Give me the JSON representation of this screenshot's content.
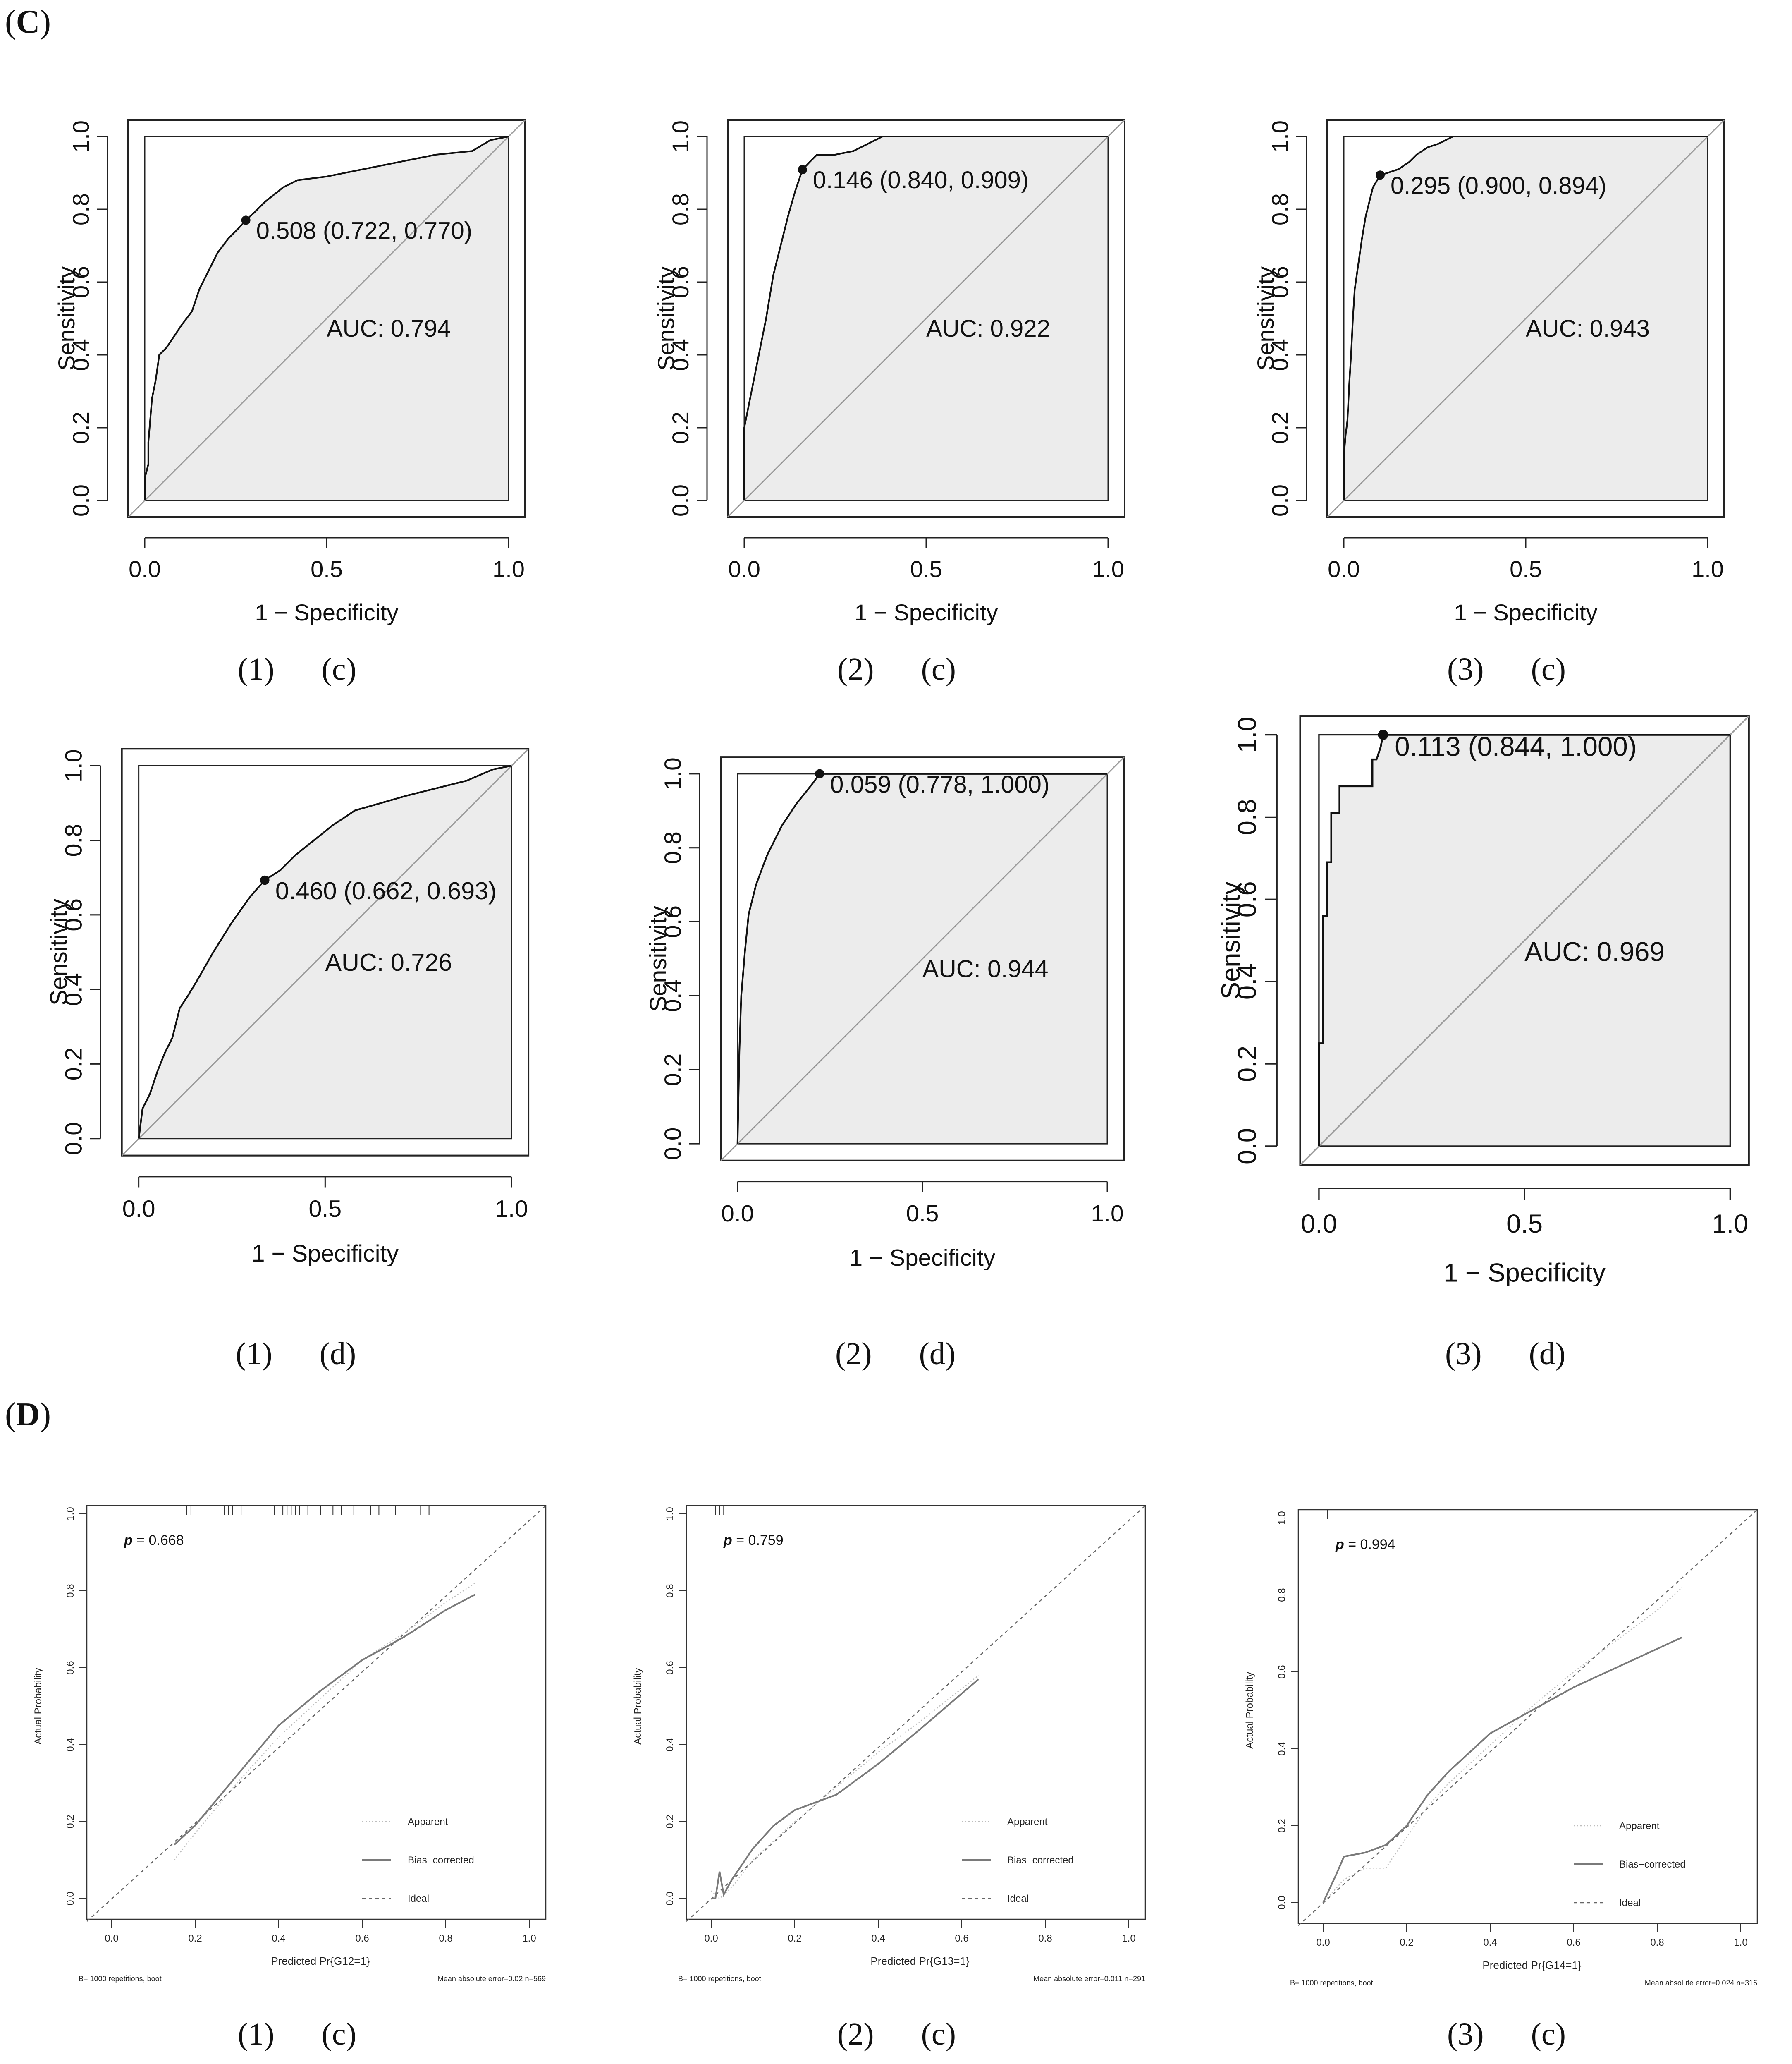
{
  "sections": [
    {
      "label_open": "(",
      "label_letter": "C",
      "label_close": ")"
    },
    {
      "label_open": "(",
      "label_letter": "D",
      "label_close": ")"
    }
  ],
  "captions": [
    {
      "num": "(1)",
      "letter": "(c)"
    },
    {
      "num": "(2)",
      "letter": "(c)"
    },
    {
      "num": "(3)",
      "letter": "(c)"
    },
    {
      "num": "(1)",
      "letter": "(d)"
    },
    {
      "num": "(2)",
      "letter": "(d)"
    },
    {
      "num": "(3)",
      "letter": "(d)"
    },
    {
      "num": "(1)",
      "letter": "(c)"
    },
    {
      "num": "(2)",
      "letter": "(c)"
    },
    {
      "num": "(3)",
      "letter": "(c)"
    }
  ],
  "chart_data": [
    {
      "type": "line",
      "subtype": "roc",
      "xlabel": "1 − Specificity",
      "ylabel": "Sensitivity",
      "xticks": [
        "0.0",
        "0.5",
        "1.0"
      ],
      "yticks": [
        "0.0",
        "0.2",
        "0.4",
        "0.6",
        "0.8",
        "1.0"
      ],
      "xlim": [
        0,
        1
      ],
      "ylim": [
        0,
        1
      ],
      "x": [
        0,
        0,
        0.01,
        0.01,
        0.02,
        0.03,
        0.04,
        0.06,
        0.08,
        0.1,
        0.13,
        0.15,
        0.17,
        0.2,
        0.23,
        0.26,
        0.278,
        0.3,
        0.33,
        0.38,
        0.42,
        0.5,
        0.6,
        0.7,
        0.8,
        0.9,
        0.95,
        1
      ],
      "y": [
        0,
        0.06,
        0.1,
        0.16,
        0.28,
        0.33,
        0.4,
        0.42,
        0.45,
        0.48,
        0.52,
        0.58,
        0.62,
        0.68,
        0.72,
        0.75,
        0.77,
        0.79,
        0.82,
        0.86,
        0.88,
        0.89,
        0.91,
        0.93,
        0.95,
        0.96,
        0.99,
        1
      ],
      "cutoff": {
        "x": 0.278,
        "y": 0.77,
        "label": "0.508 (0.722, 0.770)"
      },
      "auc_label": "AUC: 0.794"
    },
    {
      "type": "line",
      "subtype": "roc",
      "xlabel": "1 − Specificity",
      "ylabel": "Sensitivity",
      "xticks": [
        "0.0",
        "0.5",
        "1.0"
      ],
      "yticks": [
        "0.0",
        "0.2",
        "0.4",
        "0.6",
        "0.8",
        "1.0"
      ],
      "xlim": [
        0,
        1
      ],
      "ylim": [
        0,
        1
      ],
      "x": [
        0,
        0,
        0.01,
        0.02,
        0.04,
        0.06,
        0.08,
        0.1,
        0.12,
        0.14,
        0.16,
        0.18,
        0.2,
        0.25,
        0.3,
        0.38,
        1
      ],
      "y": [
        0,
        0.2,
        0.25,
        0.3,
        0.4,
        0.5,
        0.62,
        0.7,
        0.78,
        0.85,
        0.909,
        0.93,
        0.95,
        0.95,
        0.96,
        1,
        1
      ],
      "cutoff": {
        "x": 0.16,
        "y": 0.909,
        "label": "0.146 (0.840, 0.909)"
      },
      "auc_label": "AUC: 0.922"
    },
    {
      "type": "line",
      "subtype": "roc",
      "xlabel": "1 − Specificity",
      "ylabel": "Sensitivity",
      "xticks": [
        "0.0",
        "0.5",
        "1.0"
      ],
      "yticks": [
        "0.0",
        "0.2",
        "0.4",
        "0.6",
        "0.8",
        "1.0"
      ],
      "xlim": [
        0,
        1
      ],
      "ylim": [
        0,
        1
      ],
      "x": [
        0,
        0,
        0.005,
        0.01,
        0.015,
        0.02,
        0.025,
        0.03,
        0.04,
        0.05,
        0.06,
        0.07,
        0.08,
        0.1,
        0.12,
        0.15,
        0.18,
        0.2,
        0.23,
        0.26,
        0.3,
        1
      ],
      "y": [
        0,
        0.12,
        0.18,
        0.22,
        0.32,
        0.4,
        0.5,
        0.58,
        0.65,
        0.72,
        0.78,
        0.82,
        0.86,
        0.894,
        0.9,
        0.91,
        0.93,
        0.95,
        0.97,
        0.98,
        1,
        1
      ],
      "cutoff": {
        "x": 0.1,
        "y": 0.894,
        "label": "0.295 (0.900, 0.894)"
      },
      "auc_label": "AUC: 0.943"
    },
    {
      "type": "line",
      "subtype": "roc",
      "xlabel": "1 − Specificity",
      "ylabel": "Sensitivity",
      "xticks": [
        "0.0",
        "0.5",
        "1.0"
      ],
      "yticks": [
        "0.0",
        "0.2",
        "0.4",
        "0.6",
        "0.8",
        "1.0"
      ],
      "xlim": [
        0,
        1
      ],
      "ylim": [
        0,
        1
      ],
      "x": [
        0,
        0.01,
        0.03,
        0.05,
        0.07,
        0.09,
        0.11,
        0.13,
        0.16,
        0.2,
        0.25,
        0.3,
        0.338,
        0.38,
        0.42,
        0.47,
        0.52,
        0.58,
        0.65,
        0.72,
        0.8,
        0.88,
        0.95,
        1
      ],
      "y": [
        0,
        0.08,
        0.12,
        0.18,
        0.23,
        0.27,
        0.35,
        0.38,
        0.43,
        0.5,
        0.58,
        0.65,
        0.693,
        0.72,
        0.76,
        0.8,
        0.84,
        0.88,
        0.9,
        0.92,
        0.94,
        0.96,
        0.99,
        1
      ],
      "cutoff": {
        "x": 0.338,
        "y": 0.693,
        "label": "0.460 (0.662, 0.693)"
      },
      "auc_label": "AUC: 0.726"
    },
    {
      "type": "line",
      "subtype": "roc",
      "xlabel": "1 − Specificity",
      "ylabel": "Sensitivity",
      "xticks": [
        "0.0",
        "0.5",
        "1.0"
      ],
      "yticks": [
        "0.0",
        "0.2",
        "0.4",
        "0.6",
        "0.8",
        "1.0"
      ],
      "xlim": [
        0,
        1
      ],
      "ylim": [
        0,
        1
      ],
      "x": [
        0,
        0.005,
        0.01,
        0.02,
        0.03,
        0.05,
        0.08,
        0.12,
        0.16,
        0.2,
        0.222,
        1
      ],
      "y": [
        0,
        0.25,
        0.4,
        0.52,
        0.62,
        0.7,
        0.78,
        0.86,
        0.92,
        0.97,
        1,
        1
      ],
      "cutoff": {
        "x": 0.222,
        "y": 1.0,
        "label": "0.059 (0.778, 1.000)"
      },
      "auc_label": "AUC: 0.944"
    },
    {
      "type": "line",
      "subtype": "roc",
      "xlabel": "1 − Specificity",
      "ylabel": "Sensitivity",
      "xticks": [
        "0.0",
        "0.5",
        "1.0"
      ],
      "yticks": [
        "0.0",
        "0.2",
        "0.4",
        "0.6",
        "0.8",
        "1.0"
      ],
      "xlim": [
        0,
        1
      ],
      "ylim": [
        0,
        1
      ],
      "x": [
        0,
        0,
        0.01,
        0.01,
        0.02,
        0.02,
        0.03,
        0.03,
        0.04,
        0.04,
        0.05,
        0.05,
        0.06,
        0.06,
        0.09,
        0.13,
        0.13,
        0.14,
        0.15,
        0.156,
        1
      ],
      "y": [
        0,
        0.25,
        0.25,
        0.56,
        0.56,
        0.69,
        0.69,
        0.81,
        0.81,
        0.81,
        0.81,
        0.875,
        0.875,
        0.875,
        0.875,
        0.875,
        0.94,
        0.94,
        0.97,
        1,
        1
      ],
      "cutoff": {
        "x": 0.156,
        "y": 1.0,
        "label": "0.113 (0.844, 1.000)"
      },
      "auc_label": "AUC: 0.969"
    },
    {
      "type": "line",
      "subtype": "calibration",
      "xlabel": "Predicted Pr{G12=1}",
      "ylabel": "Actual Probability",
      "xticks": [
        "0.0",
        "0.2",
        "0.4",
        "0.6",
        "0.8",
        "1.0"
      ],
      "yticks": [
        "0.0",
        "0.2",
        "0.4",
        "0.6",
        "0.8",
        "1.0"
      ],
      "xlim": [
        0,
        1
      ],
      "ylim": [
        0,
        1
      ],
      "p_label": "p",
      "p_value": "= 0.668",
      "legend": [
        "Apparent",
        "Bias−corrected",
        "Ideal"
      ],
      "footer_left": "B= 1000 repetitions, boot",
      "footer_right": "Mean absolute error=0.02 n=569",
      "rug": [
        0.18,
        0.19,
        0.27,
        0.28,
        0.29,
        0.3,
        0.31,
        0.39,
        0.41,
        0.42,
        0.43,
        0.44,
        0.45,
        0.47,
        0.5,
        0.53,
        0.55,
        0.58,
        0.62,
        0.64,
        0.68,
        0.74,
        0.76
      ],
      "series": [
        {
          "name": "Apparent",
          "x": [
            0.15,
            0.2,
            0.3,
            0.4,
            0.5,
            0.6,
            0.7,
            0.8,
            0.87
          ],
          "y": [
            0.1,
            0.17,
            0.3,
            0.42,
            0.52,
            0.62,
            0.69,
            0.77,
            0.82
          ]
        },
        {
          "name": "Bias−corrected",
          "x": [
            0.15,
            0.2,
            0.3,
            0.4,
            0.5,
            0.6,
            0.7,
            0.8,
            0.87
          ],
          "y": [
            0.14,
            0.19,
            0.32,
            0.45,
            0.54,
            0.62,
            0.68,
            0.75,
            0.79
          ]
        }
      ]
    },
    {
      "type": "line",
      "subtype": "calibration",
      "xlabel": "Predicted Pr{G13=1}",
      "ylabel": "Actual Probability",
      "xticks": [
        "0.0",
        "0.2",
        "0.4",
        "0.6",
        "0.8",
        "1.0"
      ],
      "yticks": [
        "0.0",
        "0.2",
        "0.4",
        "0.6",
        "0.8",
        "1.0"
      ],
      "xlim": [
        0,
        1
      ],
      "ylim": [
        0,
        1
      ],
      "p_label": "p",
      "p_value": "= 0.759",
      "legend": [
        "Apparent",
        "Bias−corrected",
        "Ideal"
      ],
      "footer_left": "B= 1000 repetitions, boot",
      "footer_right": "Mean absolute error=0.011 n=291",
      "rug": [
        0.01,
        0.02,
        0.03
      ],
      "series": [
        {
          "name": "Apparent",
          "x": [
            0,
            0.02,
            0.05,
            0.1,
            0.2,
            0.3,
            0.4,
            0.5,
            0.64
          ],
          "y": [
            0.02,
            0.0,
            0.03,
            0.1,
            0.2,
            0.29,
            0.38,
            0.46,
            0.58
          ]
        },
        {
          "name": "Bias−corrected",
          "x": [
            0,
            0.01,
            0.02,
            0.03,
            0.05,
            0.1,
            0.15,
            0.2,
            0.25,
            0.3,
            0.35,
            0.4,
            0.5,
            0.64
          ],
          "y": [
            0.0,
            0.0,
            0.07,
            0.01,
            0.05,
            0.13,
            0.19,
            0.23,
            0.25,
            0.27,
            0.31,
            0.35,
            0.44,
            0.57
          ]
        }
      ]
    },
    {
      "type": "line",
      "subtype": "calibration",
      "xlabel": "Predicted Pr{G14=1}",
      "ylabel": "Actual Probability",
      "xticks": [
        "0.0",
        "0.2",
        "0.4",
        "0.6",
        "0.8",
        "1.0"
      ],
      "yticks": [
        "0.0",
        "0.2",
        "0.4",
        "0.6",
        "0.8",
        "1.0"
      ],
      "xlim": [
        0,
        1
      ],
      "ylim": [
        0,
        1
      ],
      "p_label": "p",
      "p_value": "= 0.994",
      "legend": [
        "Apparent",
        "Bias−corrected",
        "Ideal"
      ],
      "footer_left": "B= 1000 repetitions, boot",
      "footer_right": "Mean absolute error=0.024 n=316",
      "rug": [
        0.01
      ],
      "series": [
        {
          "name": "Apparent",
          "x": [
            0,
            0.05,
            0.1,
            0.15,
            0.2,
            0.25,
            0.3,
            0.4,
            0.5,
            0.6,
            0.7,
            0.8,
            0.86
          ],
          "y": [
            0,
            0.06,
            0.09,
            0.09,
            0.17,
            0.25,
            0.31,
            0.41,
            0.51,
            0.6,
            0.68,
            0.76,
            0.82
          ]
        },
        {
          "name": "Bias−corrected",
          "x": [
            0,
            0.03,
            0.05,
            0.1,
            0.15,
            0.2,
            0.25,
            0.3,
            0.4,
            0.5,
            0.6,
            0.7,
            0.8,
            0.86
          ],
          "y": [
            0,
            0.07,
            0.12,
            0.13,
            0.15,
            0.2,
            0.28,
            0.34,
            0.44,
            0.5,
            0.56,
            0.61,
            0.66,
            0.69
          ]
        }
      ]
    }
  ]
}
